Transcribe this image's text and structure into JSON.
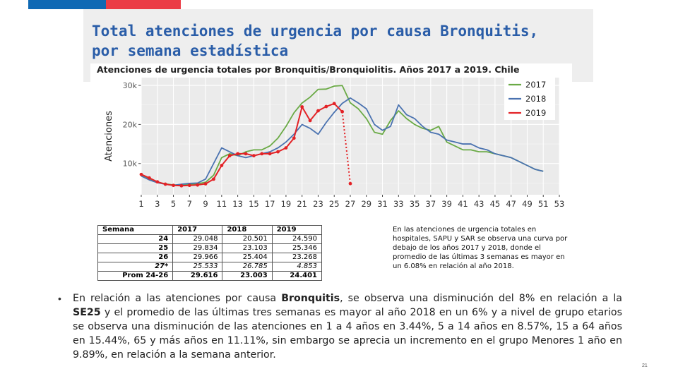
{
  "slide": {
    "title_line1": "Total atenciones de urgencia por causa Bronquitis,",
    "title_line2": "por semana estadística",
    "page_number": "21"
  },
  "chart_data": {
    "type": "line",
    "title": "Atenciones de urgencia totales por Bronquitis/Bronquiolitis. Años 2017 a 2019. Chile",
    "xlabel": "",
    "ylabel": "Atenciones",
    "xlim": [
      1,
      53
    ],
    "ylim": [
      2000,
      32000
    ],
    "x_ticks": [
      "1",
      "3",
      "5",
      "7",
      "9",
      "11",
      "13",
      "15",
      "17",
      "19",
      "21",
      "23",
      "25",
      "27",
      "29",
      "31",
      "33",
      "35",
      "37",
      "39",
      "41",
      "43",
      "45",
      "47",
      "49",
      "51",
      "53"
    ],
    "y_ticks": [
      {
        "value": 10000,
        "label": "10k"
      },
      {
        "value": 20000,
        "label": "20k"
      },
      {
        "value": 30000,
        "label": "30k"
      }
    ],
    "grid": true,
    "legend_position": "top-right",
    "series": [
      {
        "name": "2017",
        "color": "#6aaa45",
        "x": [
          1,
          2,
          3,
          4,
          5,
          6,
          7,
          8,
          9,
          10,
          11,
          12,
          13,
          14,
          15,
          16,
          17,
          18,
          19,
          20,
          21,
          22,
          23,
          24,
          25,
          26,
          27,
          28,
          29,
          30,
          31,
          32,
          33,
          34,
          35,
          36,
          37,
          38,
          39,
          40,
          41,
          42,
          43,
          44,
          45,
          46,
          47,
          48,
          49,
          50,
          51
        ],
        "y": [
          7000,
          6000,
          5200,
          4800,
          4500,
          4500,
          4600,
          4800,
          5200,
          7000,
          11500,
          12500,
          12000,
          13000,
          13500,
          13500,
          14500,
          16500,
          19500,
          23000,
          25500,
          27000,
          29000,
          29048,
          29834,
          29966,
          25533,
          24000,
          21500,
          18000,
          17500,
          21000,
          23500,
          21500,
          20000,
          19000,
          18500,
          19500,
          15500,
          14500,
          13500,
          13500,
          13000,
          13000,
          12500,
          12000,
          11500,
          10500,
          9500,
          8500,
          8000
        ]
      },
      {
        "name": "2018",
        "color": "#4a72b0",
        "x": [
          1,
          2,
          3,
          4,
          5,
          6,
          7,
          8,
          9,
          10,
          11,
          12,
          13,
          14,
          15,
          16,
          17,
          18,
          19,
          20,
          21,
          22,
          23,
          24,
          25,
          26,
          27,
          28,
          29,
          30,
          31,
          32,
          33,
          34,
          35,
          36,
          37,
          38,
          39,
          40,
          41,
          42,
          43,
          44,
          45,
          46,
          47,
          48,
          49,
          50,
          51
        ],
        "y": [
          6800,
          5800,
          5100,
          4700,
          4400,
          4700,
          4900,
          5000,
          6000,
          10000,
          14000,
          13000,
          12000,
          11500,
          12000,
          12500,
          13000,
          14000,
          15500,
          17500,
          20000,
          19000,
          17500,
          20501,
          23103,
          25404,
          26785,
          25500,
          24000,
          20000,
          18500,
          19500,
          25000,
          22500,
          21500,
          19500,
          18000,
          17500,
          16000,
          15500,
          15000,
          15000,
          14000,
          13500,
          12500,
          12000,
          11500,
          10500,
          9500,
          8500,
          8000
        ]
      },
      {
        "name": "2019",
        "color": "#e32226",
        "x": [
          1,
          2,
          3,
          4,
          5,
          6,
          7,
          8,
          9,
          10,
          11,
          12,
          13,
          14,
          15,
          16,
          17,
          18,
          19,
          20,
          21,
          22,
          23,
          24,
          25,
          26,
          27
        ],
        "y": [
          7200,
          6300,
          5300,
          4700,
          4400,
          4300,
          4400,
          4500,
          4800,
          6000,
          9500,
          12000,
          12500,
          12500,
          12000,
          12500,
          12500,
          13000,
          14000,
          16500,
          24500,
          21000,
          23500,
          24590,
          25346,
          23268,
          4853
        ]
      }
    ]
  },
  "table": {
    "headers": [
      "Semana",
      "2017",
      "2018",
      "2019"
    ],
    "rows": [
      [
        "24",
        "29.048",
        "20.501",
        "24.590"
      ],
      [
        "25",
        "29.834",
        "23.103",
        "25.346"
      ],
      [
        "26",
        "29.966",
        "25.404",
        "23.268"
      ],
      [
        "27*",
        "25.533",
        "26.785",
        "4.853"
      ],
      [
        "Prom 24-26",
        "29.616",
        "23.003",
        "24.401"
      ]
    ]
  },
  "note": "En las atenciones de urgencia totales en hospitales, SAPU y SAR se observa una curva por debajo de los años 2017 y 2018, donde el promedio de las últimas 3 semanas es mayor en un 6.08% en relación al año 2018.",
  "bullet": {
    "symbol": "•",
    "part1": "En relación a las atenciones por causa ",
    "bold1": "Bronquitis",
    "part2": ", se observa una disminución del 8% en relación a la ",
    "bold2": "SE25",
    "part3": " y el promedio de las últimas tres semanas es mayor al año 2018 en un 6% y a nivel de grupo etarios se observa una disminución de las atenciones en 1 a 4 años en 3.44%, 5 a 14 años en 8.57%, 15 a 64 años en 15.44%, 65 y más años en 11.11%, sin embargo se aprecia un incremento en el grupo Menores 1 año en 9.89%, en relación a la semana anterior."
  }
}
